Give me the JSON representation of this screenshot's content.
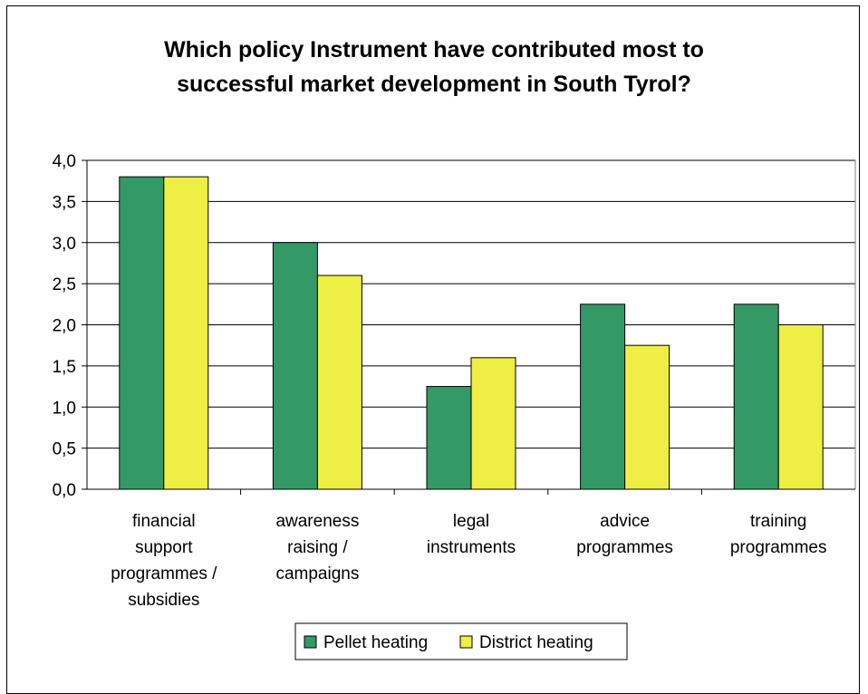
{
  "chart_data": {
    "type": "bar",
    "title_lines": [
      "Which policy Instrument have contributed most to",
      "successful market development in South Tyrol?"
    ],
    "categories": [
      [
        "financial",
        "support",
        "programmes /",
        "subsidies"
      ],
      [
        "awareness",
        "raising /",
        "campaigns"
      ],
      [
        "legal",
        "instruments"
      ],
      [
        "advice",
        "programmes"
      ],
      [
        "training",
        "programmes"
      ]
    ],
    "series": [
      {
        "name": "Pellet heating",
        "color": "#339966",
        "values": [
          3.8,
          3.0,
          1.25,
          2.25,
          2.25
        ]
      },
      {
        "name": "District heating",
        "color": "#EEEE44",
        "values": [
          3.8,
          2.6,
          1.6,
          1.75,
          2.0
        ]
      }
    ],
    "ylim": [
      0,
      4
    ],
    "yticks": [
      "0,0",
      "0,5",
      "1,0",
      "1,5",
      "2,0",
      "2,5",
      "3,0",
      "3,5",
      "4,0"
    ],
    "ytick_values": [
      0,
      0.5,
      1,
      1.5,
      2,
      2.5,
      3,
      3.5,
      4
    ],
    "grid": true,
    "legend": "bottom-center"
  }
}
